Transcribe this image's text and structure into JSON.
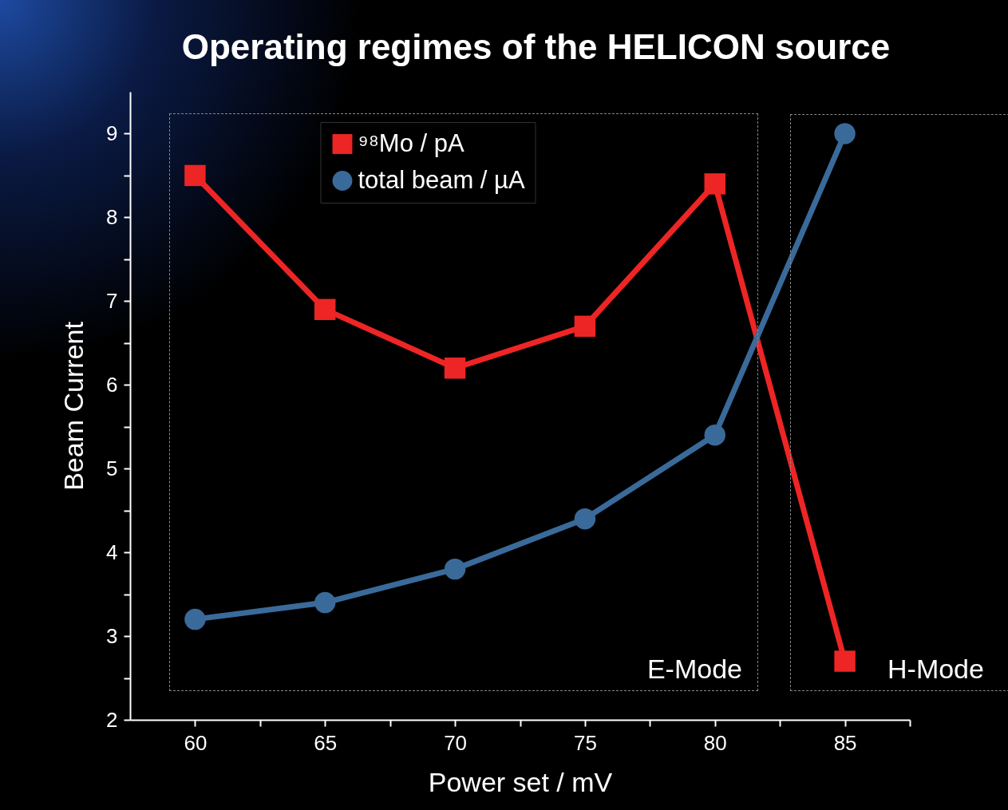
{
  "chart_data": {
    "type": "line",
    "title": "Operating regimes of the HELICON source",
    "xlabel": "Power set / mV",
    "ylabel": "Beam Current",
    "x": [
      60,
      65,
      70,
      75,
      80,
      85
    ],
    "series": [
      {
        "name": "⁹⁸Mo / pA",
        "color": "#ee2525",
        "marker": "square",
        "values": [
          8.5,
          6.9,
          6.2,
          6.7,
          8.4,
          2.7
        ]
      },
      {
        "name": "total beam / µA",
        "color": "#3a6a9a",
        "marker": "circle",
        "values": [
          3.2,
          3.4,
          3.8,
          4.4,
          5.4,
          9.0
        ]
      }
    ],
    "xlim": [
      57.5,
      87.5
    ],
    "xticks": [
      60,
      {
        "value": 62.5,
        "label": null
      },
      65,
      {
        "value": 67.5,
        "label": null
      },
      70,
      {
        "value": 72.5,
        "label": null
      },
      75,
      {
        "value": 77.5,
        "label": null
      },
      80,
      {
        "value": 82.5,
        "label": null
      },
      85,
      {
        "value": 87.5,
        "label": null
      }
    ],
    "ylim": [
      2,
      9.5
    ],
    "yticks": [
      2,
      {
        "value": 2.5,
        "label": null
      },
      3,
      {
        "value": 3.5,
        "label": null
      },
      4,
      {
        "value": 4.5,
        "label": null
      },
      5,
      {
        "value": 5.5,
        "label": null
      },
      6,
      {
        "value": 6.5,
        "label": null
      },
      7,
      {
        "value": 7.5,
        "label": null
      },
      8,
      {
        "value": 8.5,
        "label": null
      },
      9
    ],
    "annotations": [
      "E-Mode",
      "H-Mode"
    ],
    "grid": false,
    "legend": "top",
    "line_style": "solid"
  }
}
